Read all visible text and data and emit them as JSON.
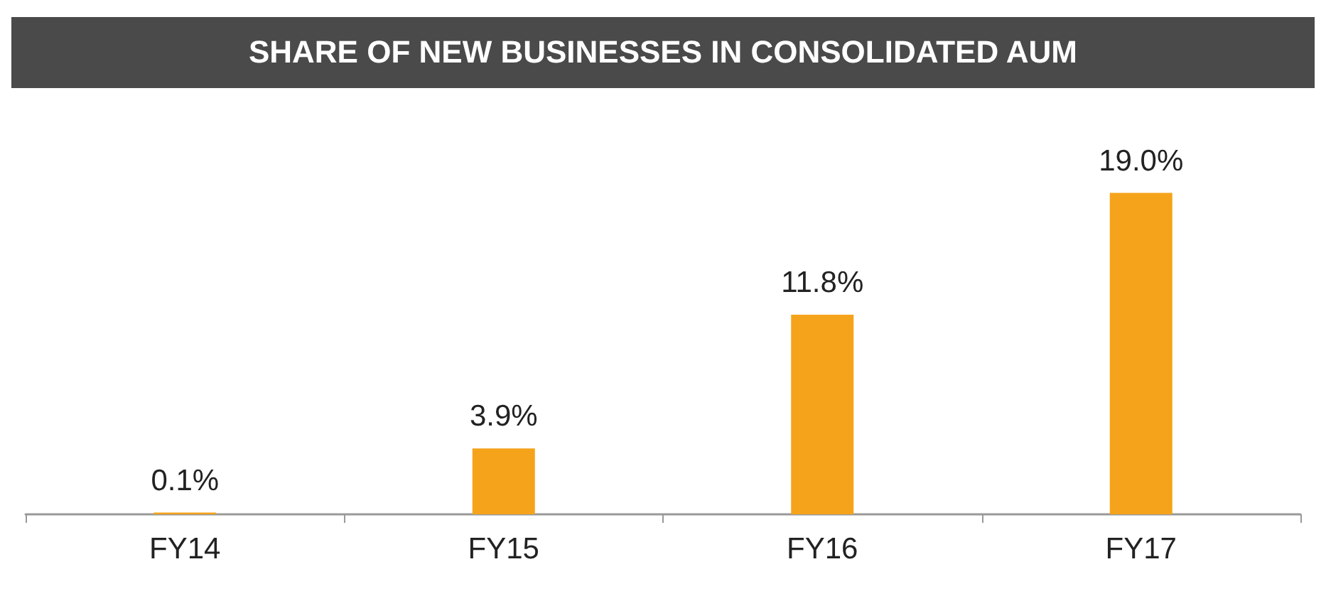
{
  "chart_data": {
    "type": "bar",
    "title": "SHARE OF NEW BUSINESSES IN CONSOLIDATED AUM",
    "categories": [
      "FY14",
      "FY15",
      "FY16",
      "FY17"
    ],
    "values": [
      0.1,
      3.9,
      11.8,
      19.0
    ],
    "value_labels": [
      "0.1%",
      "3.9%",
      "11.8%",
      "19.0%"
    ],
    "color": "#f5a31b"
  }
}
